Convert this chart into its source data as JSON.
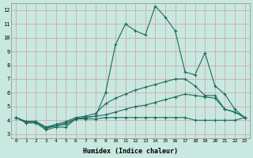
{
  "x": [
    0,
    1,
    2,
    3,
    4,
    5,
    6,
    7,
    8,
    9,
    10,
    11,
    12,
    13,
    14,
    15,
    16,
    17,
    18,
    19,
    20,
    21,
    22,
    23
  ],
  "line1": [
    4.2,
    3.8,
    3.8,
    3.3,
    3.5,
    3.5,
    4.1,
    4.1,
    4.1,
    4.2,
    4.2,
    4.2,
    4.2,
    4.2,
    4.2,
    4.2,
    4.2,
    4.2,
    4.0,
    4.0,
    4.0,
    4.0,
    4.0,
    4.2
  ],
  "line2": [
    4.2,
    3.9,
    3.9,
    3.5,
    3.6,
    3.7,
    4.1,
    4.2,
    4.3,
    4.4,
    4.6,
    4.8,
    5.0,
    5.1,
    5.3,
    5.5,
    5.7,
    5.9,
    5.8,
    5.7,
    5.6,
    4.8,
    4.6,
    4.2
  ],
  "line3": [
    4.2,
    3.9,
    3.9,
    3.5,
    3.7,
    3.9,
    4.2,
    4.3,
    4.5,
    5.2,
    5.6,
    5.9,
    6.2,
    6.4,
    6.6,
    6.8,
    7.0,
    7.0,
    6.5,
    5.8,
    5.8,
    4.8,
    4.6,
    4.2
  ],
  "line4": [
    4.2,
    3.9,
    3.9,
    3.4,
    3.6,
    3.8,
    4.1,
    4.2,
    4.3,
    6.0,
    9.5,
    11.0,
    10.5,
    10.2,
    12.3,
    11.5,
    10.5,
    7.5,
    7.3,
    8.9,
    6.5,
    5.9,
    4.8,
    4.2
  ],
  "line_color": "#1a6b5e",
  "bg_color": "#c8e8e0",
  "grid_color": "#a8ccc4",
  "xlabel": "Humidex (Indice chaleur)",
  "ylim": [
    3,
    12
  ],
  "xlim": [
    0,
    23
  ],
  "yticks": [
    3,
    4,
    5,
    6,
    7,
    8,
    9,
    10,
    11,
    12
  ],
  "xticks": [
    0,
    1,
    2,
    3,
    4,
    5,
    6,
    7,
    8,
    9,
    10,
    11,
    12,
    13,
    14,
    15,
    16,
    17,
    18,
    19,
    20,
    21,
    22,
    23
  ]
}
